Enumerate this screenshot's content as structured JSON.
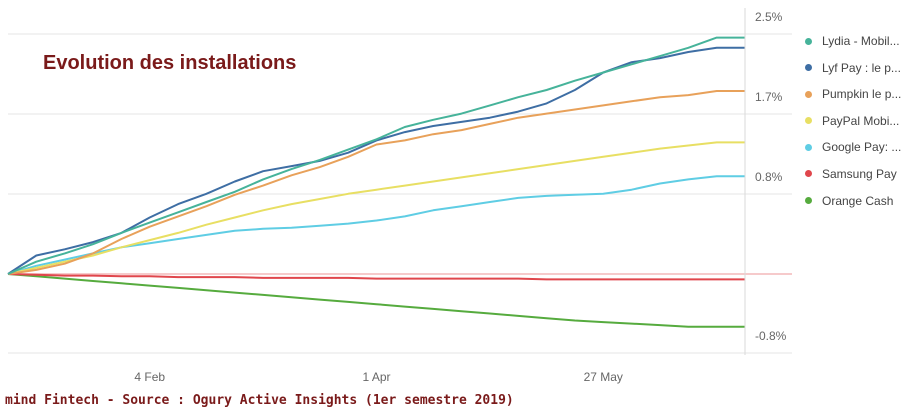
{
  "chart_data": {
    "type": "line",
    "title": "Evolution des installations",
    "source": "mind Fintech - Source : Ogury Active Insights (1er semestre 2019)",
    "y_ticks": [
      "2.5%",
      "1.7%",
      "0.8%",
      "-0.8%"
    ],
    "y_tick_values": [
      2.5,
      1.7,
      0.8,
      -0.8
    ],
    "ylim": [
      -0.8,
      2.5
    ],
    "x_ticks": [
      {
        "label": "4 Feb",
        "week": 5
      },
      {
        "label": "1 Apr",
        "week": 13
      },
      {
        "label": "27 May",
        "week": 21
      }
    ],
    "x_start_week": 0,
    "x_end_week": 26,
    "grid": true,
    "legend_position": "right",
    "series": [
      {
        "name": "Lydia - Mobil...",
        "color": "#46b39a",
        "values": [
          0.0,
          0.12,
          0.2,
          0.29,
          0.4,
          0.5,
          0.6,
          0.7,
          0.8,
          0.92,
          1.02,
          1.11,
          1.21,
          1.31,
          1.43,
          1.5,
          1.56,
          1.64,
          1.72,
          1.79,
          1.88,
          1.96,
          2.04,
          2.12,
          2.2,
          2.3,
          2.3
        ]
      },
      {
        "name": "Lyf Pay : le p...",
        "color": "#3e6ea4",
        "values": [
          0.0,
          0.18,
          0.24,
          0.31,
          0.4,
          0.55,
          0.68,
          0.78,
          0.9,
          1.0,
          1.05,
          1.1,
          1.18,
          1.3,
          1.38,
          1.44,
          1.48,
          1.52,
          1.58,
          1.66,
          1.79,
          1.96,
          2.06,
          2.1,
          2.16,
          2.2,
          2.2
        ]
      },
      {
        "name": "Pumpkin le p...",
        "color": "#e8a15a",
        "values": [
          0.0,
          0.04,
          0.1,
          0.2,
          0.34,
          0.46,
          0.56,
          0.66,
          0.77,
          0.86,
          0.96,
          1.04,
          1.14,
          1.26,
          1.3,
          1.36,
          1.4,
          1.46,
          1.52,
          1.56,
          1.6,
          1.64,
          1.68,
          1.72,
          1.74,
          1.78,
          1.78
        ]
      },
      {
        "name": "PayPal Mobi...",
        "color": "#e8df63",
        "values": [
          0.0,
          0.06,
          0.12,
          0.18,
          0.26,
          0.33,
          0.4,
          0.48,
          0.55,
          0.62,
          0.68,
          0.73,
          0.78,
          0.82,
          0.86,
          0.9,
          0.94,
          0.98,
          1.02,
          1.06,
          1.1,
          1.14,
          1.18,
          1.22,
          1.25,
          1.28,
          1.28
        ]
      },
      {
        "name": "Google Pay: ...",
        "color": "#5fcde4",
        "values": [
          0.0,
          0.08,
          0.14,
          0.2,
          0.26,
          0.3,
          0.34,
          0.38,
          0.42,
          0.44,
          0.45,
          0.47,
          0.49,
          0.52,
          0.56,
          0.62,
          0.66,
          0.7,
          0.74,
          0.76,
          0.77,
          0.78,
          0.82,
          0.88,
          0.92,
          0.95,
          0.95
        ]
      },
      {
        "name": "Samsung Pay",
        "color": "#e0464c",
        "values": [
          0.0,
          -0.01,
          -0.02,
          -0.02,
          -0.03,
          -0.03,
          -0.04,
          -0.04,
          -0.04,
          -0.05,
          -0.05,
          -0.05,
          -0.05,
          -0.06,
          -0.06,
          -0.06,
          -0.06,
          -0.06,
          -0.06,
          -0.07,
          -0.07,
          -0.07,
          -0.07,
          -0.07,
          -0.07,
          -0.07,
          -0.07
        ]
      },
      {
        "name": "Orange Cash",
        "color": "#56ab3e",
        "values": [
          0.0,
          -0.03,
          -0.06,
          -0.09,
          -0.12,
          -0.15,
          -0.18,
          -0.21,
          -0.24,
          -0.27,
          -0.3,
          -0.33,
          -0.36,
          -0.39,
          -0.42,
          -0.45,
          -0.48,
          -0.51,
          -0.54,
          -0.57,
          -0.6,
          -0.62,
          -0.64,
          -0.66,
          -0.68,
          -0.68,
          -0.68
        ]
      }
    ]
  }
}
